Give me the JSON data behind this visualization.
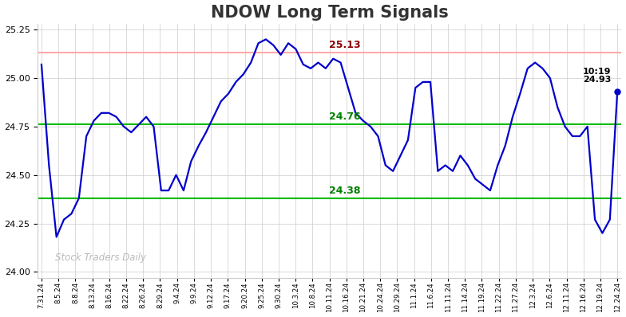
{
  "title": "NDOW Long Term Signals",
  "title_fontsize": 15,
  "title_color": "#333333",
  "title_fontweight": "bold",
  "background_color": "#ffffff",
  "grid_color": "#cccccc",
  "line_color": "#0000cc",
  "line_width": 1.6,
  "red_hline": 25.13,
  "green_hline_upper": 24.76,
  "green_hline_lower": 24.38,
  "red_hline_color": "#ffaaaa",
  "green_hline_color": "#00bb00",
  "annotation_red_text": "25.13",
  "annotation_green_upper": "24.76",
  "annotation_green_lower": "24.38",
  "annotation_current_time": "10:19",
  "annotation_current_value": "24.93",
  "watermark_text": "Stock Traders Daily",
  "watermark_color": "#bbbbbb",
  "ylim": [
    23.97,
    25.28
  ],
  "yticks": [
    24,
    24.25,
    24.5,
    24.75,
    25,
    25.25
  ],
  "xtick_labels": [
    "7.31.24",
    "8.5.24",
    "8.8.24",
    "8.13.24",
    "8.16.24",
    "8.22.24",
    "8.26.24",
    "8.29.24",
    "9.4.24",
    "9.9.24",
    "9.12.24",
    "9.17.24",
    "9.20.24",
    "9.25.24",
    "9.30.24",
    "10.3.24",
    "10.8.24",
    "10.11.24",
    "10.16.24",
    "10.21.24",
    "10.24.24",
    "10.29.24",
    "11.1.24",
    "11.6.24",
    "11.11.24",
    "11.14.24",
    "11.19.24",
    "11.22.24",
    "11.27.24",
    "12.3.24",
    "12.6.24",
    "12.11.24",
    "12.16.24",
    "12.19.24",
    "12.24.24"
  ],
  "ydata": [
    25.07,
    24.55,
    24.18,
    24.27,
    24.3,
    24.38,
    24.7,
    24.78,
    24.82,
    24.82,
    24.8,
    24.75,
    24.72,
    24.76,
    24.8,
    24.75,
    24.42,
    24.42,
    24.5,
    24.42,
    24.57,
    24.65,
    24.72,
    24.8,
    24.88,
    24.92,
    24.98,
    25.02,
    25.08,
    25.18,
    25.2,
    25.17,
    25.12,
    25.18,
    25.15,
    25.07,
    25.05,
    25.08,
    25.05,
    25.1,
    25.08,
    24.95,
    24.82,
    24.78,
    24.75,
    24.7,
    24.55,
    24.52,
    24.6,
    24.68,
    24.95,
    24.98,
    24.98,
    24.52,
    24.55,
    24.52,
    24.6,
    24.55,
    24.48,
    24.45,
    24.42,
    24.55,
    24.65,
    24.8,
    24.92,
    25.05,
    25.08,
    25.05,
    25.0,
    24.85,
    24.75,
    24.7,
    24.7,
    24.75,
    24.27,
    24.2,
    24.27,
    24.93
  ],
  "n_xticks": 35,
  "fig_width": 7.84,
  "fig_height": 3.98,
  "fig_dpi": 100
}
